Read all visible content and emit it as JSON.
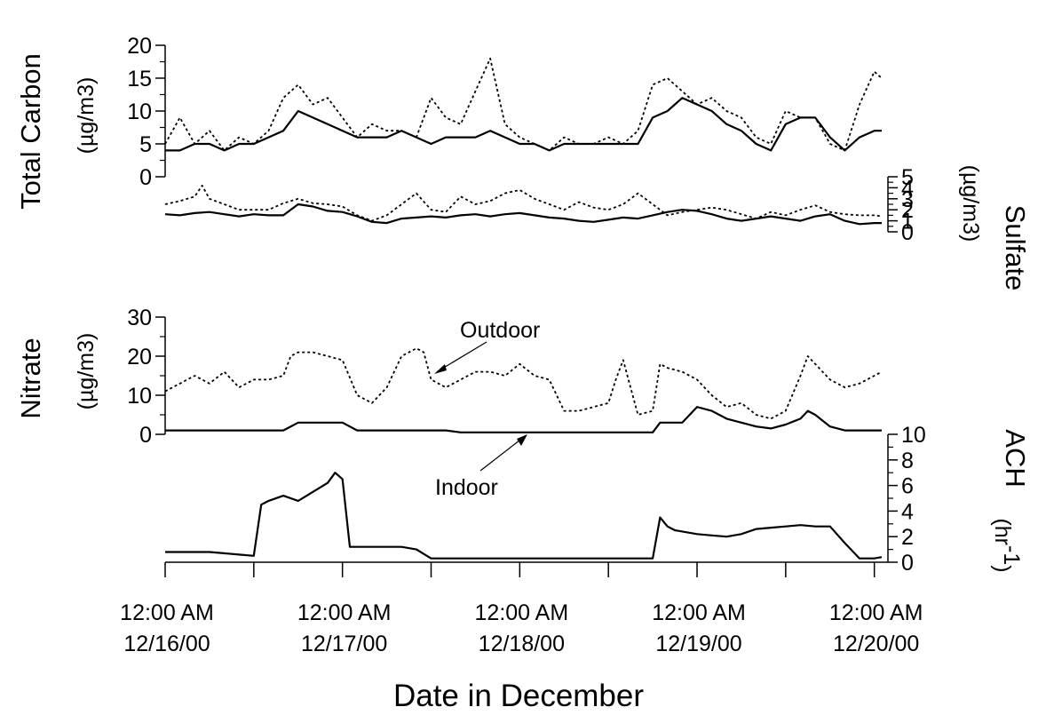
{
  "chart_data": {
    "type": "line",
    "xlabel": "Date in December",
    "x_ticks": [
      {
        "x": 0,
        "line1": "12:00 AM",
        "line2": "12/16/00"
      },
      {
        "x": 24,
        "line1": "12:00 AM",
        "line2": "12/17/00"
      },
      {
        "x": 48,
        "line1": "12:00 AM",
        "line2": "12/18/00"
      },
      {
        "x": 72,
        "line1": "12:00 AM",
        "line2": "12/19/00"
      },
      {
        "x": 96,
        "line1": "12:00 AM",
        "line2": "12/20/00"
      }
    ],
    "panels": [
      {
        "id": "total-carbon",
        "ylabel": "Total Carbon",
        "yunit": "(µg/m3)",
        "axis_side": "left",
        "ylim": [
          0,
          20
        ],
        "ticks": [
          0,
          5,
          10,
          15,
          20
        ],
        "series": [
          {
            "style": "dashed",
            "x": [
              0,
              2,
              4,
              6,
              8,
              10,
              12,
              14,
              16,
              18,
              20,
              22,
              24,
              26,
              28,
              30,
              32,
              34,
              36,
              38,
              40,
              42,
              44,
              46,
              48,
              50,
              52,
              54,
              56,
              58,
              60,
              62,
              64,
              66,
              68,
              70,
              72,
              74,
              76,
              78,
              80,
              82,
              84,
              86,
              88,
              90,
              92,
              94,
              96,
              97
            ],
            "y": [
              5,
              9,
              5,
              7,
              4,
              6,
              5,
              7,
              12,
              14,
              11,
              12,
              9,
              6,
              8,
              7,
              7,
              6,
              12,
              9,
              8,
              13,
              18,
              8,
              6,
              5,
              4,
              6,
              5,
              5,
              6,
              5,
              7,
              14,
              15,
              13,
              11,
              12,
              10,
              9,
              6,
              5,
              10,
              9,
              9,
              5,
              4,
              11,
              16,
              15
            ]
          },
          {
            "style": "solid",
            "x": [
              0,
              2,
              4,
              6,
              8,
              10,
              12,
              14,
              16,
              18,
              20,
              22,
              24,
              26,
              28,
              30,
              32,
              34,
              36,
              38,
              40,
              42,
              44,
              46,
              48,
              50,
              52,
              54,
              56,
              58,
              60,
              62,
              64,
              66,
              68,
              70,
              72,
              74,
              76,
              78,
              80,
              82,
              84,
              86,
              88,
              90,
              92,
              94,
              96,
              97
            ],
            "y": [
              4,
              4,
              5,
              5,
              4,
              5,
              5,
              6,
              7,
              10,
              9,
              8,
              7,
              6,
              6,
              6,
              7,
              6,
              5,
              6,
              6,
              6,
              7,
              6,
              5,
              5,
              4,
              5,
              5,
              5,
              5,
              5,
              5,
              9,
              10,
              12,
              11,
              10,
              8,
              7,
              5,
              4,
              8,
              9,
              9,
              6,
              4,
              6,
              7,
              7
            ]
          }
        ]
      },
      {
        "id": "sulfate",
        "ylabel": "Sulfate",
        "yunit": "(µg/m3)",
        "axis_side": "right",
        "ylim": [
          0,
          5
        ],
        "ticks": [
          0,
          1,
          2,
          3,
          4,
          5
        ],
        "series": [
          {
            "style": "dashed",
            "x": [
              0,
              2,
              4,
              5,
              6,
              8,
              10,
              12,
              14,
              16,
              18,
              20,
              22,
              24,
              26,
              28,
              30,
              32,
              34,
              36,
              38,
              40,
              42,
              44,
              46,
              48,
              50,
              52,
              54,
              56,
              58,
              60,
              62,
              64,
              66,
              68,
              70,
              72,
              74,
              76,
              78,
              80,
              82,
              84,
              86,
              88,
              90,
              92,
              94,
              96,
              97
            ],
            "y": [
              2.5,
              2.8,
              3.2,
              4.2,
              3.0,
              2.5,
              2.0,
              2.0,
              2.0,
              2.6,
              3.0,
              2.6,
              2.5,
              2.3,
              1.5,
              1.0,
              1.5,
              2.5,
              3.5,
              2.0,
              1.8,
              3.2,
              2.5,
              2.8,
              3.5,
              3.8,
              3.0,
              2.5,
              2.0,
              2.7,
              2.2,
              2.0,
              2.5,
              3.5,
              2.5,
              1.5,
              1.8,
              2.0,
              2.2,
              2.0,
              1.6,
              1.2,
              1.8,
              1.5,
              2.0,
              2.4,
              1.8,
              1.6,
              1.5,
              1.5,
              1.4
            ]
          },
          {
            "style": "solid",
            "x": [
              0,
              2,
              4,
              6,
              8,
              10,
              12,
              14,
              16,
              18,
              20,
              22,
              24,
              26,
              28,
              30,
              32,
              34,
              36,
              38,
              40,
              42,
              44,
              46,
              48,
              50,
              52,
              54,
              56,
              58,
              60,
              62,
              64,
              66,
              68,
              70,
              72,
              74,
              76,
              78,
              80,
              82,
              84,
              86,
              88,
              90,
              92,
              94,
              96,
              97
            ],
            "y": [
              1.6,
              1.5,
              1.7,
              1.8,
              1.6,
              1.4,
              1.6,
              1.5,
              1.5,
              2.5,
              2.3,
              1.9,
              1.8,
              1.4,
              0.9,
              0.8,
              1.2,
              1.3,
              1.4,
              1.3,
              1.5,
              1.6,
              1.4,
              1.6,
              1.7,
              1.5,
              1.3,
              1.2,
              1.0,
              0.9,
              1.1,
              1.3,
              1.2,
              1.5,
              1.8,
              2.0,
              1.9,
              1.6,
              1.2,
              1.0,
              1.2,
              1.4,
              1.2,
              1.0,
              1.4,
              1.6,
              1.0,
              0.7,
              0.8,
              0.8
            ]
          }
        ]
      },
      {
        "id": "nitrate",
        "ylabel": "Nitrate",
        "yunit": "(µg/m3)",
        "axis_side": "left",
        "ylim": [
          0,
          30
        ],
        "ticks": [
          0,
          10,
          20,
          30
        ],
        "annotations": [
          "Outdoor",
          "Indoor"
        ],
        "series": [
          {
            "style": "dashed",
            "x": [
              0,
              2,
              4,
              6,
              8,
              10,
              12,
              14,
              16,
              17,
              18,
              20,
              22,
              24,
              26,
              28,
              30,
              32,
              34,
              35,
              36,
              38,
              40,
              42,
              44,
              46,
              48,
              50,
              52,
              54,
              56,
              58,
              60,
              61,
              62,
              64,
              66,
              67,
              68,
              70,
              72,
              74,
              76,
              78,
              80,
              82,
              84,
              86,
              87,
              88,
              90,
              92,
              94,
              96,
              97
            ],
            "y": [
              11,
              13,
              15,
              13,
              16,
              12,
              14,
              14,
              15,
              20,
              21,
              21,
              20,
              19,
              10,
              8,
              12,
              20,
              22,
              21,
              14,
              12,
              14,
              16,
              16,
              15,
              18,
              15,
              14,
              6,
              6,
              7,
              8,
              14,
              19,
              5,
              6,
              18,
              17,
              16,
              14,
              10,
              7,
              8,
              5,
              4,
              6,
              15,
              20,
              18,
              14,
              12,
              13,
              15,
              16
            ]
          },
          {
            "style": "solid",
            "x": [
              0,
              2,
              4,
              6,
              8,
              10,
              12,
              14,
              16,
              18,
              20,
              22,
              24,
              26,
              28,
              30,
              32,
              34,
              36,
              38,
              40,
              42,
              44,
              46,
              48,
              50,
              52,
              54,
              56,
              58,
              60,
              62,
              64,
              66,
              67,
              68,
              70,
              72,
              74,
              76,
              78,
              80,
              82,
              84,
              86,
              87,
              88,
              90,
              92,
              94,
              96,
              97
            ],
            "y": [
              1,
              1,
              1,
              1,
              1,
              1,
              1,
              1,
              1,
              3,
              3,
              3,
              3,
              1,
              1,
              1,
              1,
              1,
              1,
              1,
              0.5,
              0.5,
              0.5,
              0.5,
              0.5,
              0.5,
              0.5,
              0.5,
              0.5,
              0.5,
              0.5,
              0.5,
              0.5,
              0.5,
              3,
              3,
              3,
              7,
              6,
              4,
              3,
              2,
              1.5,
              2.5,
              4,
              6,
              5,
              2,
              1,
              1,
              1,
              1
            ]
          }
        ]
      },
      {
        "id": "ach",
        "ylabel": "ACH",
        "yunit": "(hr",
        "yunit_sup": "-1",
        "yunit_tail": ")",
        "axis_side": "right",
        "ylim": [
          0,
          10
        ],
        "ticks": [
          0,
          2,
          4,
          6,
          8,
          10
        ],
        "series": [
          {
            "style": "solid",
            "x": [
              0,
              6,
              10,
              12,
              13,
              14,
              16,
              18,
              20,
              22,
              23,
              24,
              25,
              26,
              28,
              30,
              32,
              34,
              36,
              38,
              42,
              48,
              54,
              60,
              64,
              66,
              67,
              68,
              69,
              70,
              72,
              74,
              76,
              78,
              80,
              82,
              84,
              86,
              88,
              90,
              92,
              94,
              96,
              97
            ],
            "y": [
              0.8,
              0.8,
              0.6,
              0.5,
              4.5,
              4.8,
              5.2,
              4.8,
              5.5,
              6.2,
              7.0,
              6.5,
              1.2,
              1.2,
              1.2,
              1.2,
              1.2,
              1.0,
              0.3,
              0.3,
              0.3,
              0.3,
              0.3,
              0.3,
              0.3,
              0.3,
              3.5,
              2.8,
              2.5,
              2.4,
              2.2,
              2.1,
              2.0,
              2.2,
              2.6,
              2.7,
              2.8,
              2.9,
              2.8,
              2.8,
              1.5,
              0.3,
              0.3,
              0.4
            ]
          }
        ]
      }
    ]
  }
}
